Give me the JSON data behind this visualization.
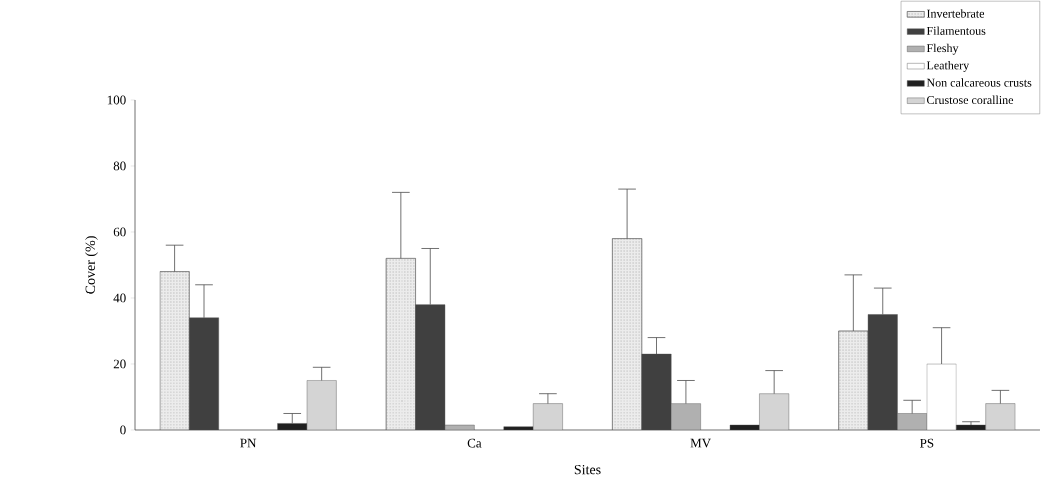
{
  "chart_data": {
    "type": "bar",
    "xlabel": "Sites",
    "ylabel": "Cover (%)",
    "categories": [
      "PN",
      "Ca",
      "MV",
      "PS"
    ],
    "series": [
      {
        "name": "Invertebrate",
        "color": "#ececec",
        "values": [
          48,
          52,
          58,
          30
        ],
        "errors": [
          [
            48,
            56
          ],
          [
            52,
            72
          ],
          [
            58,
            73
          ],
          [
            30,
            47
          ]
        ]
      },
      {
        "name": "Filamentous",
        "color": "#404040",
        "values": [
          34,
          38,
          23,
          35
        ],
        "errors": [
          [
            34,
            44
          ],
          [
            38,
            55
          ],
          [
            23,
            28
          ],
          [
            35,
            43
          ]
        ]
      },
      {
        "name": "Fleshy",
        "color": "#b0b0b0",
        "values": [
          null,
          1.5,
          8,
          5
        ],
        "errors": [
          null,
          null,
          [
            8,
            15
          ],
          [
            5,
            9
          ]
        ]
      },
      {
        "name": "Leathery",
        "color": "#ffffff",
        "values": [
          null,
          null,
          null,
          20
        ],
        "errors": [
          null,
          null,
          null,
          [
            20,
            31
          ]
        ]
      },
      {
        "name": "Non calcareous crusts",
        "color": "#202020",
        "values": [
          2,
          1,
          1.5,
          1.5
        ],
        "errors": [
          [
            2,
            5
          ],
          null,
          null,
          [
            1.5,
            2.5
          ]
        ]
      },
      {
        "name": "Crustose coralline",
        "color": "#d4d4d4",
        "values": [
          15,
          8,
          11,
          8
        ],
        "errors": [
          [
            15,
            19
          ],
          [
            8,
            11
          ],
          [
            11,
            18
          ],
          [
            8,
            12
          ]
        ]
      }
    ],
    "ylim": [
      0,
      100
    ],
    "yticks": [
      0,
      20,
      40,
      60,
      80,
      100
    ],
    "legend": "top right"
  }
}
